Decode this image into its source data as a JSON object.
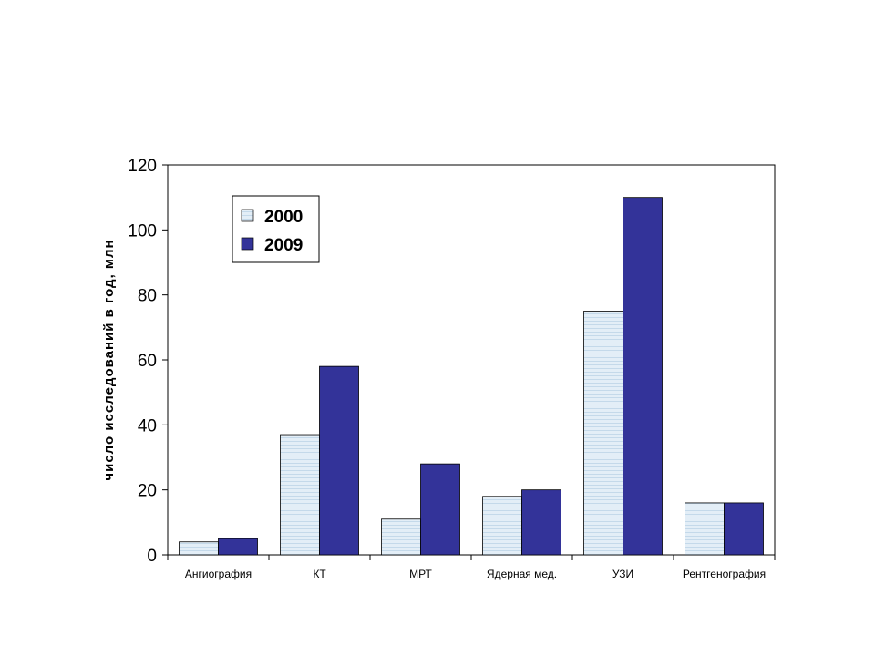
{
  "chart_data": {
    "type": "bar",
    "title": "",
    "xlabel": "",
    "ylabel": "число исследований в год, млн",
    "ylim": [
      0,
      120
    ],
    "yticks": [
      "0",
      "20",
      "40",
      "60",
      "80",
      "100",
      "120"
    ],
    "grid": false,
    "legend_position": "top-left",
    "categories": [
      "Ангиография",
      "КТ",
      "МРТ",
      "Ядерная мед.",
      "УЗИ",
      "Рентгенография"
    ],
    "series": [
      {
        "name": "2000",
        "color": "#d6e6f2",
        "values": [
          4,
          37,
          11,
          18,
          75,
          16
        ]
      },
      {
        "name": "2009",
        "color": "#333399",
        "values": [
          5,
          58,
          28,
          20,
          110,
          16
        ]
      }
    ]
  }
}
